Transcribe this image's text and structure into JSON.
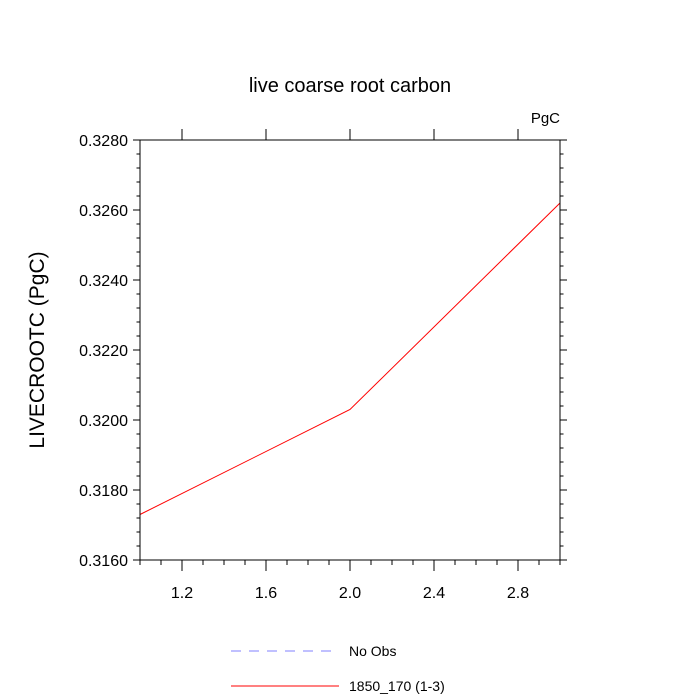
{
  "chart_data": {
    "type": "line",
    "title": "live coarse root carbon",
    "units_label": "PgC",
    "ylabel": "LIVECROOTC  (PgC)",
    "xlabel": "",
    "xlim": [
      1.0,
      3.0
    ],
    "ylim": [
      0.316,
      0.328
    ],
    "x_ticks": [
      1.2,
      1.6,
      2.0,
      2.4,
      2.8
    ],
    "x_tick_labels": [
      "1.2",
      "1.6",
      "2.0",
      "2.4",
      "2.8"
    ],
    "y_ticks": [
      0.316,
      0.318,
      0.32,
      0.322,
      0.324,
      0.326,
      0.328
    ],
    "y_tick_labels": [
      "0.3160",
      "0.3180",
      "0.3200",
      "0.3220",
      "0.3240",
      "0.3260",
      "0.3280"
    ],
    "grid": false,
    "legend_position": "bottom",
    "series": [
      {
        "name": "No Obs",
        "color": "#8080ff",
        "dash": "dashed",
        "x": [],
        "y": []
      },
      {
        "name": "1850_170 (1-3)",
        "color": "#ff0000",
        "dash": "solid",
        "x": [
          1.0,
          2.0,
          3.0
        ],
        "y": [
          0.3173,
          0.3203,
          0.3262
        ]
      }
    ]
  }
}
